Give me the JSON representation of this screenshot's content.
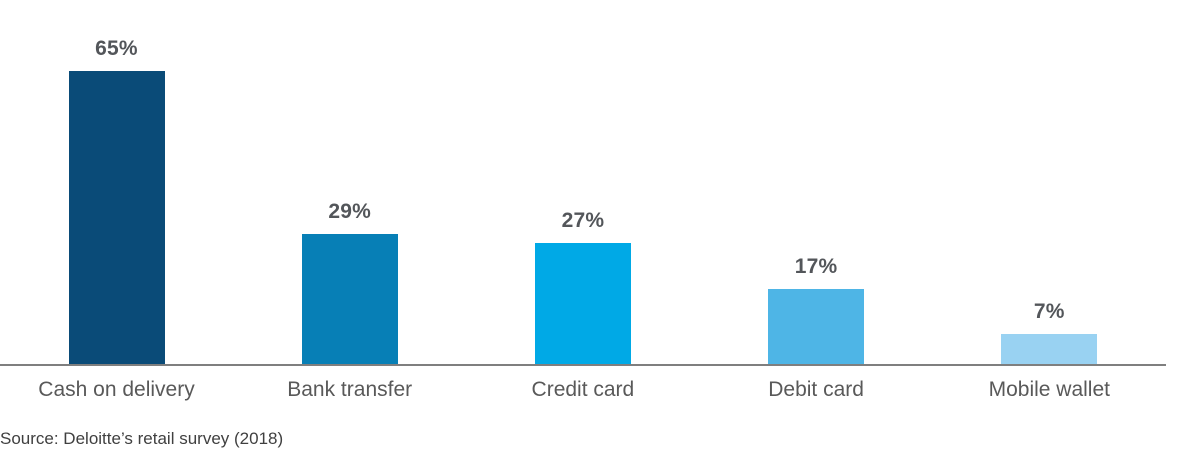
{
  "chart_data": {
    "type": "bar",
    "categories": [
      "Cash on delivery",
      "Bank transfer",
      "Credit card",
      "Debit card",
      "Mobile wallet"
    ],
    "values": [
      65,
      29,
      27,
      17,
      7
    ],
    "value_labels": [
      "65%",
      "29%",
      "27%",
      "17%",
      "7%"
    ],
    "unit": "%",
    "title": "",
    "xlabel": "",
    "ylabel": "",
    "ylim": [
      0,
      70
    ],
    "grid": false,
    "legend": false,
    "bar_colors": [
      "#0A4B78",
      "#077FB6",
      "#00A9E6",
      "#4EB5E6",
      "#99D2F2"
    ],
    "value_label_color": "#53565A",
    "category_label_color": "#595959",
    "axis_color": "#7F7F7F",
    "background": "#FFFFFF",
    "source": "Source: Deloitte’s retail survey (2018)",
    "source_color": "#404040"
  }
}
